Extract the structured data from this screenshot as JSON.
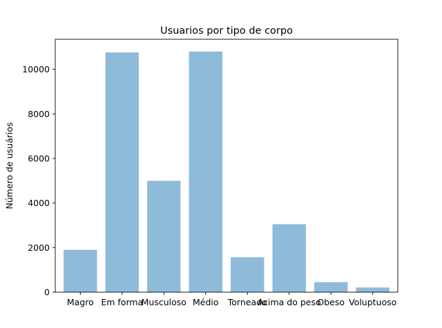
{
  "chart_data": {
    "type": "bar",
    "title": "Usuarios por tipo de corpo",
    "xlabel": "",
    "ylabel": "Número de usuários",
    "categories": [
      "Magro",
      "Em forma",
      "Musculoso",
      "Médio",
      "Torneado",
      "Acima do peso",
      "Obeso",
      "Voluptuoso"
    ],
    "values": [
      1900,
      10760,
      5000,
      10800,
      1570,
      3050,
      450,
      210
    ],
    "ylim": [
      0,
      11350
    ],
    "yticks": [
      0,
      2000,
      4000,
      6000,
      8000,
      10000
    ],
    "bar_color": "#8fbbdb",
    "grid": false,
    "legend": "none"
  }
}
